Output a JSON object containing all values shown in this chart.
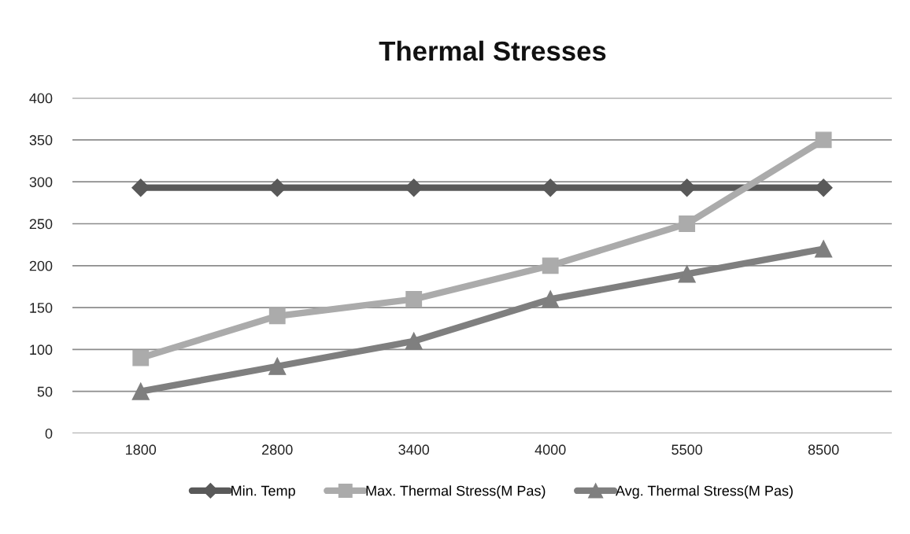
{
  "chart_data": {
    "type": "line",
    "title": "Thermal Stresses",
    "categories": [
      "1800",
      "2800",
      "3400",
      "4000",
      "5500",
      "8500"
    ],
    "series": [
      {
        "name": "Min. Temp",
        "color": "#595959",
        "marker": "diamond",
        "values": [
          293,
          293,
          293,
          293,
          293,
          293
        ]
      },
      {
        "name": "Max. Thermal Stress(M Pas)",
        "color": "#ababab",
        "marker": "square",
        "values": [
          90,
          140,
          160,
          200,
          250,
          350
        ]
      },
      {
        "name": "Avg. Thermal Stress(M Pas)",
        "color": "#7f7f7f",
        "marker": "triangle",
        "values": [
          50,
          80,
          110,
          160,
          190,
          220
        ]
      }
    ],
    "ylim": [
      0,
      400
    ],
    "yticks": [
      0,
      50,
      100,
      150,
      200,
      250,
      300,
      350,
      400
    ],
    "grid": "y",
    "legend": "bottom"
  }
}
